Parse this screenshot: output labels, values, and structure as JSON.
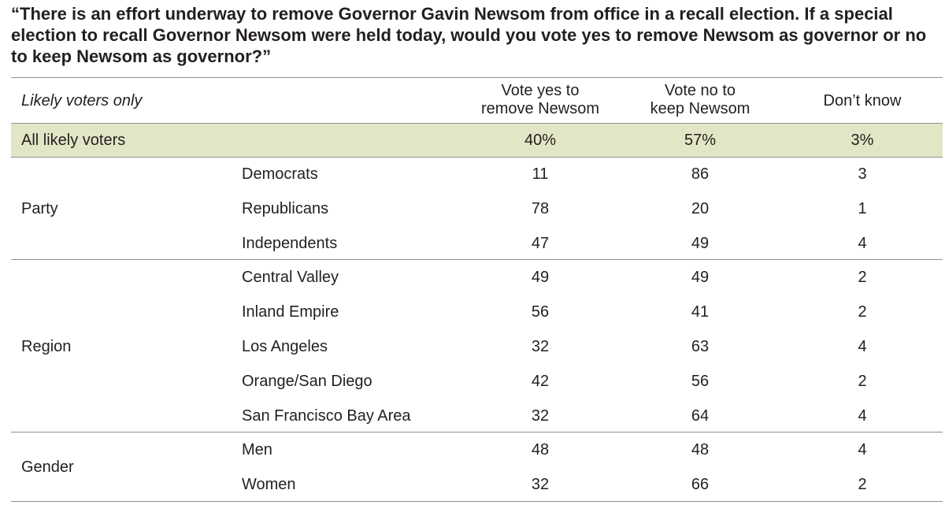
{
  "question": "“There is an effort underway to remove Governor Gavin Newsom from office in a recall election. If a special election to recall Governor Newsom were held today, would you vote yes to remove Newsom as governor or no to keep Newsom as governor?”",
  "header": {
    "population": "Likely voters only",
    "columns": [
      {
        "line1": "Vote yes to",
        "line2": "remove Newsom"
      },
      {
        "line1": "Vote no to",
        "line2": "keep Newsom"
      },
      {
        "line1": "Don’t know",
        "line2": ""
      }
    ]
  },
  "total": {
    "label": "All likely voters",
    "values": [
      "40%",
      "57%",
      "3%"
    ]
  },
  "groups": [
    {
      "name": "Party",
      "rows": [
        {
          "label": "Democrats",
          "values": [
            "11",
            "86",
            "3"
          ]
        },
        {
          "label": "Republicans",
          "values": [
            "78",
            "20",
            "1"
          ]
        },
        {
          "label": "Independents",
          "values": [
            "47",
            "49",
            "4"
          ]
        }
      ]
    },
    {
      "name": "Region",
      "rows": [
        {
          "label": "Central Valley",
          "values": [
            "49",
            "49",
            "2"
          ]
        },
        {
          "label": "Inland Empire",
          "values": [
            "56",
            "41",
            "2"
          ]
        },
        {
          "label": "Los Angeles",
          "values": [
            "32",
            "63",
            "4"
          ]
        },
        {
          "label": "Orange/San Diego",
          "values": [
            "42",
            "56",
            "2"
          ]
        },
        {
          "label": "San Francisco Bay Area",
          "values": [
            "32",
            "64",
            "4"
          ]
        }
      ]
    },
    {
      "name": "Gender",
      "rows": [
        {
          "label": "Men",
          "values": [
            "48",
            "48",
            "4"
          ]
        },
        {
          "label": "Women",
          "values": [
            "32",
            "66",
            "2"
          ]
        }
      ]
    }
  ],
  "colors": {
    "total_band": "#e2e6c6",
    "rule": "#8f8f8f",
    "text": "#231f20"
  },
  "chart_data": {
    "type": "table",
    "title": "“There is an effort underway to remove Governor Gavin Newsom from office in a recall election. If a special election to recall Governor Newsom were held today, would you vote yes to remove Newsom as governor or no to keep Newsom as governor?”",
    "columns": [
      "Vote yes to remove Newsom",
      "Vote no to keep Newsom",
      "Don’t know"
    ],
    "rows": [
      {
        "group": "",
        "label": "All likely voters",
        "values": [
          40,
          57,
          3
        ]
      },
      {
        "group": "Party",
        "label": "Democrats",
        "values": [
          11,
          86,
          3
        ]
      },
      {
        "group": "Party",
        "label": "Republicans",
        "values": [
          78,
          20,
          1
        ]
      },
      {
        "group": "Party",
        "label": "Independents",
        "values": [
          47,
          49,
          4
        ]
      },
      {
        "group": "Region",
        "label": "Central Valley",
        "values": [
          49,
          49,
          2
        ]
      },
      {
        "group": "Region",
        "label": "Inland Empire",
        "values": [
          56,
          41,
          2
        ]
      },
      {
        "group": "Region",
        "label": "Los Angeles",
        "values": [
          32,
          63,
          4
        ]
      },
      {
        "group": "Region",
        "label": "Orange/San Diego",
        "values": [
          42,
          56,
          2
        ]
      },
      {
        "group": "Region",
        "label": "San Francisco Bay Area",
        "values": [
          32,
          64,
          4
        ]
      },
      {
        "group": "Gender",
        "label": "Men",
        "values": [
          48,
          48,
          4
        ]
      },
      {
        "group": "Gender",
        "label": "Women",
        "values": [
          32,
          66,
          2
        ]
      }
    ]
  }
}
